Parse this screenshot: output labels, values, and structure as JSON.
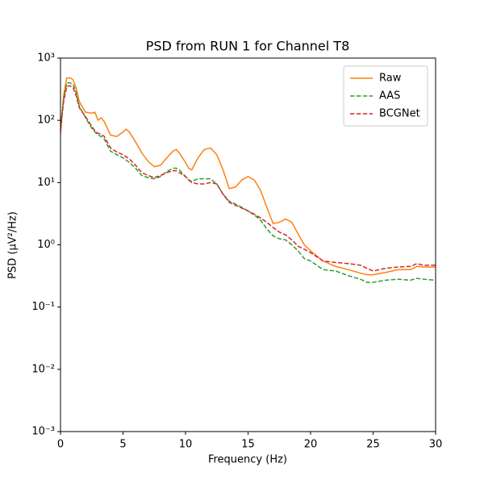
{
  "chart_data": {
    "type": "line",
    "title": "PSD from RUN 1 for Channel T8",
    "xlabel": "Frequency (Hz)",
    "ylabel": "PSD (μV²/Hz)",
    "yscale": "log",
    "legend": "upper right",
    "xlim": [
      0,
      30
    ],
    "xticks": [
      0,
      5,
      10,
      15,
      20,
      25,
      30
    ],
    "ylim": [
      0.001,
      1000
    ],
    "yticks": [
      {
        "value": 0.001,
        "label": "10⁻³"
      },
      {
        "value": 0.01,
        "label": "10⁻²"
      },
      {
        "value": 0.1,
        "label": "10⁻¹"
      },
      {
        "value": 1,
        "label": "10⁰"
      },
      {
        "value": 10,
        "label": "10¹"
      },
      {
        "value": 100,
        "label": "10²"
      },
      {
        "value": 1000,
        "label": "10³"
      }
    ],
    "x": [
      0,
      0.25,
      0.5,
      0.75,
      1,
      1.25,
      1.5,
      2,
      2.5,
      2.75,
      3,
      3.25,
      3.5,
      4,
      4.5,
      5,
      5.25,
      5.5,
      6,
      6.5,
      7,
      7.5,
      8,
      8.5,
      9,
      9.25,
      9.5,
      10,
      10.25,
      10.5,
      11,
      11.5,
      12,
      12.5,
      13,
      13.5,
      14,
      14.5,
      15,
      15.5,
      16,
      16.5,
      17,
      17.5,
      18,
      18.5,
      19,
      19.5,
      20,
      21,
      22,
      23,
      24,
      24.5,
      25,
      26,
      27,
      28,
      28.5,
      29,
      30
    ],
    "series": [
      {
        "name": "Raw",
        "color": "#ff7f0e",
        "linestyle": "solid",
        "values": [
          60,
          250,
          480,
          480,
          450,
          330,
          200,
          135,
          130,
          135,
          100,
          110,
          95,
          58,
          55,
          65,
          72,
          65,
          45,
          30,
          22,
          18,
          19,
          25,
          32,
          34,
          30,
          21,
          17,
          16,
          25,
          34,
          36,
          28,
          16,
          8,
          8.5,
          11,
          12.5,
          11,
          7.5,
          4,
          2.2,
          2.3,
          2.6,
          2.3,
          1.5,
          1.0,
          0.8,
          0.55,
          0.45,
          0.4,
          0.35,
          0.33,
          0.33,
          0.36,
          0.4,
          0.4,
          0.45,
          0.44,
          0.44
        ]
      },
      {
        "name": "AAS",
        "color": "#2ca02c",
        "linestyle": "dashed",
        "values": [
          80,
          220,
          400,
          400,
          380,
          280,
          170,
          110,
          75,
          65,
          58,
          55,
          50,
          32,
          28,
          25,
          23,
          21,
          17,
          13,
          12,
          11.5,
          12.5,
          15,
          17,
          17,
          16,
          12.5,
          11,
          10.5,
          11.5,
          11.5,
          11.5,
          9.5,
          6.5,
          5,
          4.5,
          4,
          3.5,
          3,
          2.5,
          1.8,
          1.4,
          1.25,
          1.2,
          1.0,
          0.8,
          0.6,
          0.55,
          0.4,
          0.38,
          0.32,
          0.28,
          0.25,
          0.25,
          0.27,
          0.28,
          0.27,
          0.29,
          0.28,
          0.27
        ]
      },
      {
        "name": "BCGNet",
        "color": "#d62728",
        "linestyle": "dashed",
        "values": [
          70,
          200,
          350,
          360,
          340,
          250,
          160,
          115,
          80,
          68,
          62,
          60,
          55,
          36,
          31,
          28,
          26,
          24,
          19,
          14.5,
          13,
          12,
          13,
          14.5,
          15.5,
          15.5,
          14.5,
          12.5,
          11,
          10,
          9.5,
          9.5,
          10,
          9.5,
          6.5,
          4.8,
          4.3,
          3.9,
          3.5,
          3.1,
          2.7,
          2.3,
          1.9,
          1.6,
          1.45,
          1.2,
          0.95,
          0.85,
          0.75,
          0.55,
          0.52,
          0.5,
          0.47,
          0.42,
          0.38,
          0.42,
          0.44,
          0.45,
          0.5,
          0.47,
          0.47
        ]
      }
    ]
  }
}
